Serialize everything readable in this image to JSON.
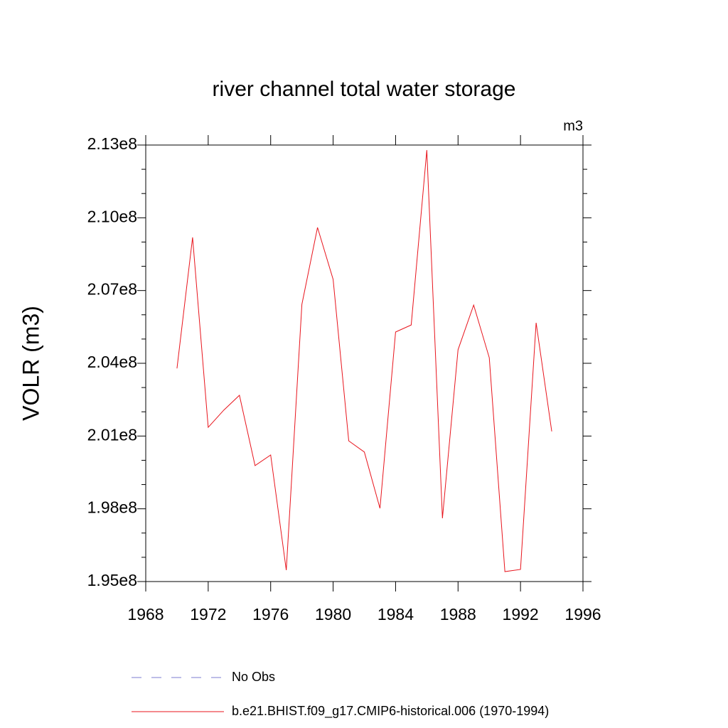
{
  "chart_data": {
    "type": "line",
    "title": "river channel total water storage",
    "units": "m3",
    "y_label": "VOLR  (m3)",
    "x": [
      1970,
      1971,
      1972,
      1973,
      1974,
      1975,
      1976,
      1977,
      1978,
      1979,
      1980,
      1981,
      1982,
      1983,
      1984,
      1985,
      1986,
      1987,
      1988,
      1989,
      1990,
      1991,
      1992,
      1993,
      1994
    ],
    "series": [
      {
        "name": "b.e21.BHIST.f09_g17.CMIP6-historical.006 (1970-1994)",
        "color": "#e8141c",
        "values": [
          203790000,
          209190000,
          201360000,
          202070000,
          202680000,
          199780000,
          200220000,
          195470000,
          206430000,
          209600000,
          207460000,
          200800000,
          200340000,
          198020000,
          205290000,
          205580000,
          212790000,
          197610000,
          204560000,
          206400000,
          204230000,
          195410000,
          195500000,
          205670000,
          201190000
        ]
      }
    ],
    "legend": [
      {
        "label": "No Obs",
        "color": "#7b7bd0",
        "style": "dashed"
      }
    ],
    "xlim": [
      1968,
      1996
    ],
    "xticks": [
      1968,
      1972,
      1976,
      1980,
      1984,
      1988,
      1992,
      1996
    ],
    "ylim": [
      195000000,
      213000000
    ],
    "yticks": [
      {
        "value": 195000000,
        "label": "1.95e8"
      },
      {
        "value": 198000000,
        "label": "1.98e8"
      },
      {
        "value": 201000000,
        "label": "2.01e8"
      },
      {
        "value": 204000000,
        "label": "2.04e8"
      },
      {
        "value": 207000000,
        "label": "2.07e8"
      },
      {
        "value": 210000000,
        "label": "2.10e8"
      },
      {
        "value": 213000000,
        "label": "2.13e8"
      }
    ]
  }
}
